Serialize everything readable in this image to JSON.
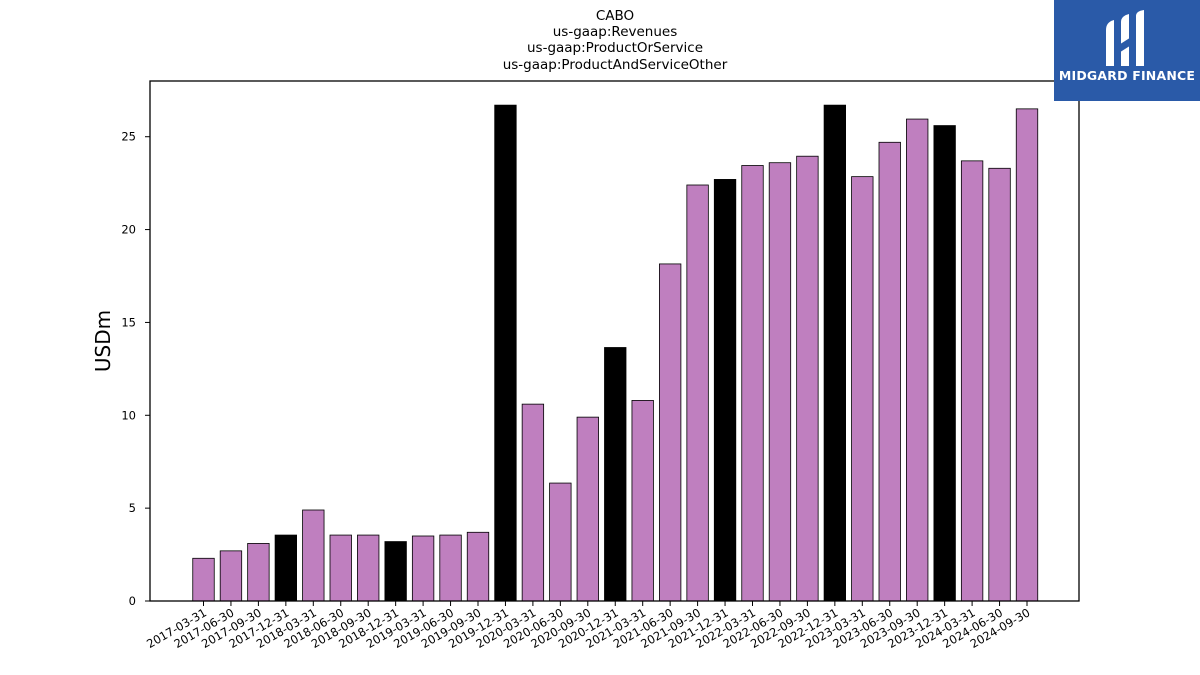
{
  "chart_data": {
    "type": "bar",
    "title_lines": [
      "CABO",
      "us-gaap:Revenues",
      "us-gaap:ProductOrService",
      "us-gaap:ProductAndServiceOther"
    ],
    "ylabel": "USDm",
    "xlabel": "",
    "ylim": [
      0,
      28
    ],
    "yticks": [
      0,
      5,
      10,
      15,
      20,
      25
    ],
    "colors": {
      "default": "#bf7fbf",
      "highlight": "#000000"
    },
    "categories": [
      "2017-03-31",
      "2017-06-30",
      "2017-09-30",
      "2017-12-31",
      "2018-03-31",
      "2018-06-30",
      "2018-09-30",
      "2018-12-31",
      "2019-03-31",
      "2019-06-30",
      "2019-09-30",
      "2019-12-31",
      "2020-03-31",
      "2020-06-30",
      "2020-09-30",
      "2020-12-31",
      "2021-03-31",
      "2021-06-30",
      "2021-09-30",
      "2021-12-31",
      "2022-03-31",
      "2022-06-30",
      "2022-09-30",
      "2022-12-31",
      "2023-03-31",
      "2023-06-30",
      "2023-09-30",
      "2023-12-31",
      "2024-03-31",
      "2024-06-30",
      "2024-09-30"
    ],
    "values": [
      2.3,
      2.7,
      3.1,
      3.55,
      4.9,
      3.55,
      3.55,
      3.2,
      3.5,
      3.55,
      3.7,
      26.7,
      10.6,
      6.35,
      9.9,
      13.65,
      10.8,
      18.15,
      22.4,
      22.7,
      23.45,
      23.6,
      23.95,
      26.7,
      22.85,
      24.7,
      25.95,
      25.6,
      23.7,
      23.3,
      26.5
    ],
    "highlighted": [
      false,
      false,
      false,
      true,
      false,
      false,
      false,
      true,
      false,
      false,
      false,
      true,
      false,
      false,
      false,
      true,
      false,
      false,
      false,
      true,
      false,
      false,
      false,
      true,
      false,
      false,
      false,
      true,
      false,
      false,
      false
    ]
  },
  "logo": {
    "text": "MIDGARD FINANCE",
    "background": "#2a5aa8"
  }
}
